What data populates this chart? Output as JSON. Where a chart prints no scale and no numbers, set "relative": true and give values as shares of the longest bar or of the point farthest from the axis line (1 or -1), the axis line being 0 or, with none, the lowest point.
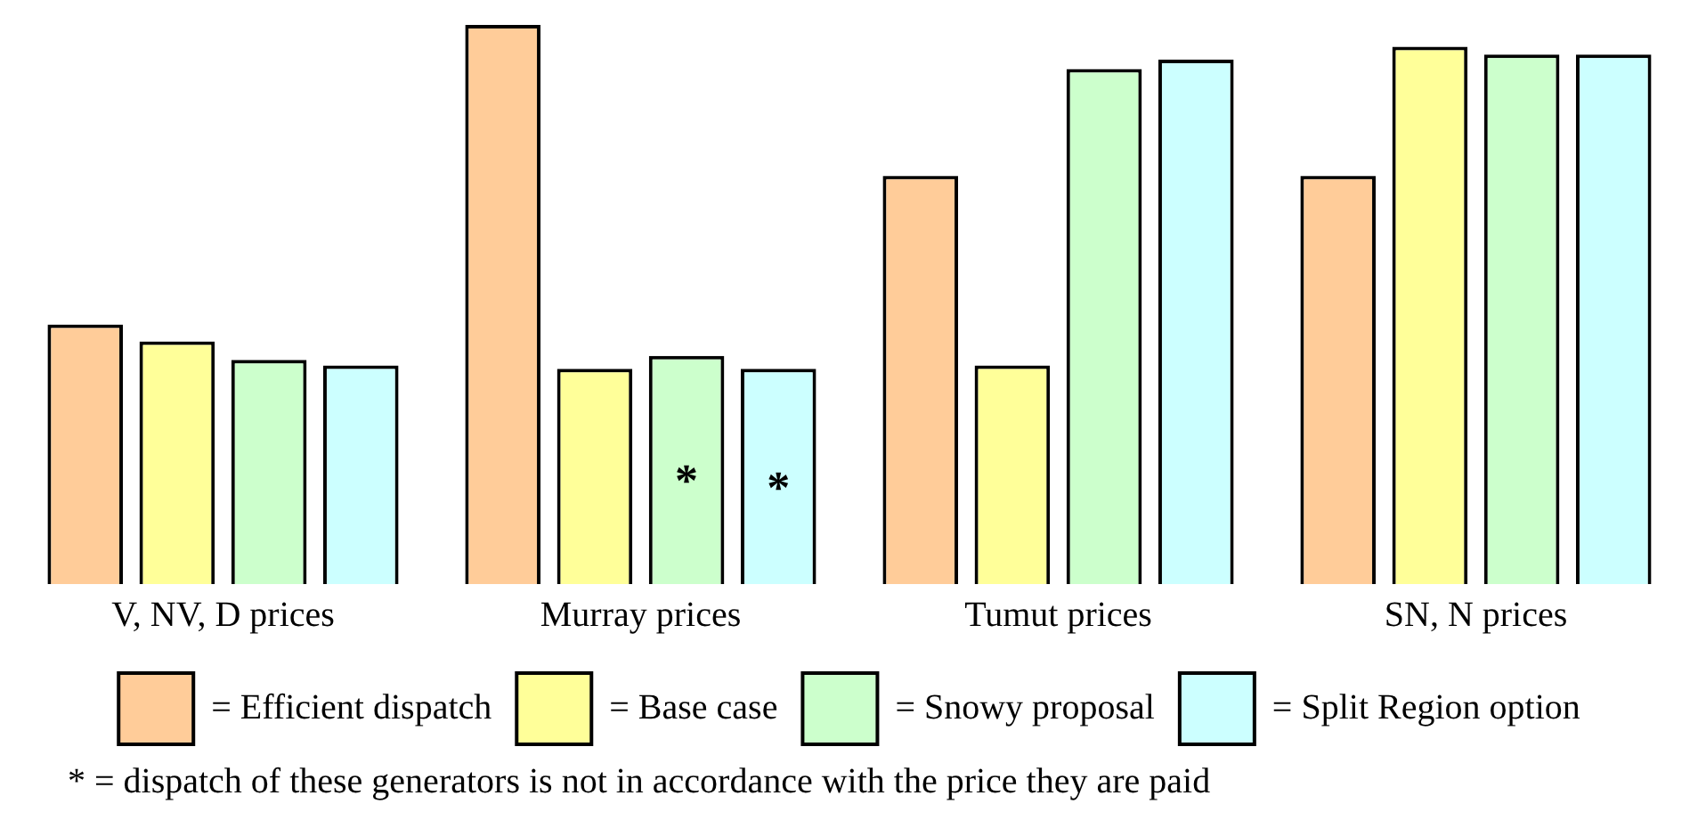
{
  "chart_data": {
    "type": "bar",
    "relative": true,
    "categories": [
      "V, NV, D prices",
      "Murray prices",
      "Tumut prices",
      "SN, N prices"
    ],
    "series": [
      {
        "name": "= Efficient dispatch",
        "color": "#ffcc99",
        "values": [
          0.464,
          1,
          0.73,
          0.73
        ]
      },
      {
        "name": "= Base case",
        "color": "#ffff99",
        "values": [
          0.434,
          0.385,
          0.391,
          0.961
        ]
      },
      {
        "name": "= Snowy proposal",
        "color": "#ccffcc",
        "values": [
          0.401,
          0.408,
          0.921,
          0.947
        ]
      },
      {
        "name": "= Split Region option",
        "color": "#ccffff",
        "values": [
          0.391,
          0.385,
          0.938,
          0.947
        ]
      }
    ],
    "legend": "bottom",
    "grid": false,
    "annotations": [
      "*",
      "*",
      "* = dispatch of these generators is not in accordance with the price they are paid"
    ]
  }
}
